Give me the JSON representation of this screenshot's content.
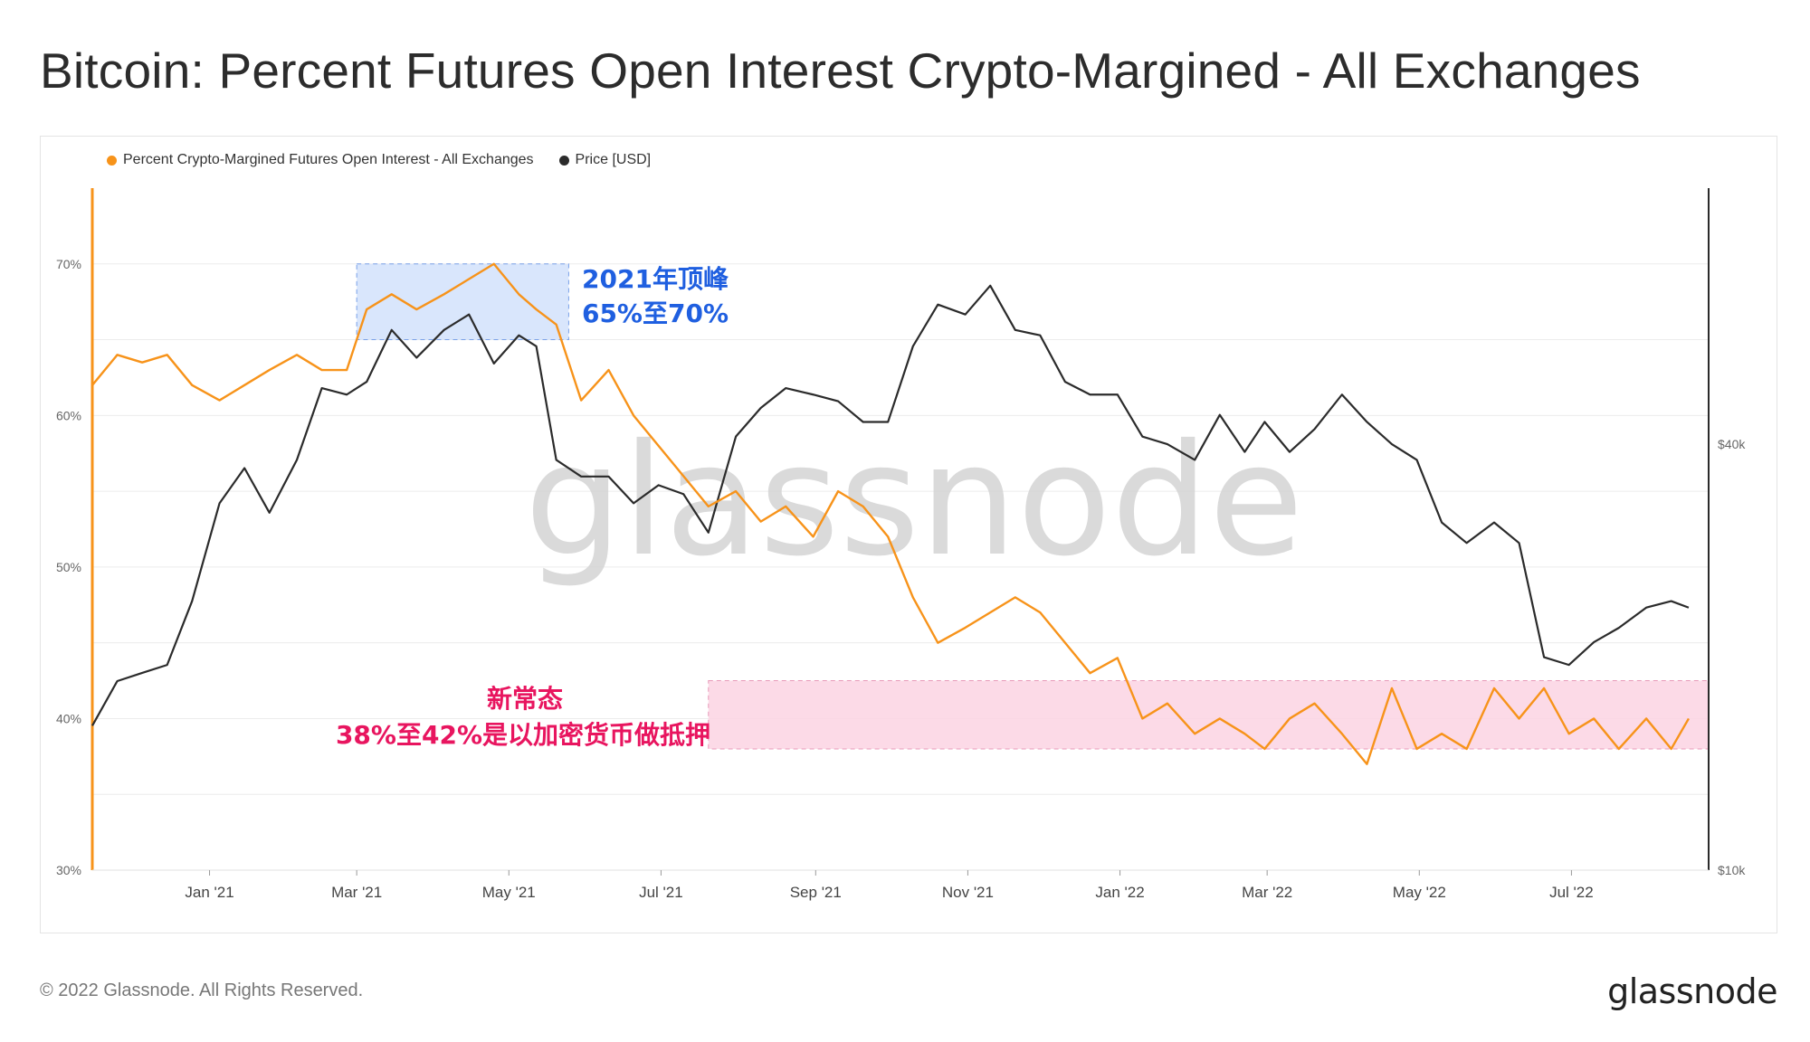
{
  "title": "Bitcoin: Percent Futures Open Interest Crypto-Margined - All Exchanges",
  "footer": "© 2022 Glassnode. All Rights Reserved.",
  "logo": "glassnode",
  "watermark": "glassnode",
  "colors": {
    "orange": "#f7931a",
    "black": "#2b2b2b",
    "blue_box": "#cfe0fb",
    "pink_box": "#fbd3e3",
    "blue_text": "#1f5fe0",
    "pink_text": "#e8155f"
  },
  "chart_data": {
    "type": "line",
    "title": "Bitcoin: Percent Futures Open Interest Crypto-Margined - All Exchanges",
    "x_ticks": [
      "Jan '21",
      "Mar '21",
      "May '21",
      "Jul '21",
      "Sep '21",
      "Nov '21",
      "Jan '22",
      "Mar '22",
      "May '22",
      "Jul '22"
    ],
    "left_axis": {
      "ticks": [
        "30%",
        "40%",
        "50%",
        "60%",
        "70%"
      ],
      "ylim": [
        30,
        75
      ]
    },
    "right_axis": {
      "ticks": [
        "$10k",
        "$40k"
      ],
      "scale": "log"
    },
    "legend": [
      {
        "name": "Percent Crypto-Margined Futures Open Interest - All Exchanges",
        "color": "#f7931a"
      },
      {
        "name": "Price [USD]",
        "color": "#2b2b2b"
      }
    ],
    "series": [
      {
        "name": "Percent Crypto-Margined Futures Open Interest - All Exchanges",
        "axis": "left",
        "x": [
          "2020-11-15",
          "2020-11-25",
          "2020-12-05",
          "2020-12-15",
          "2020-12-25",
          "2021-01-05",
          "2021-01-15",
          "2021-01-25",
          "2021-02-05",
          "2021-02-15",
          "2021-02-25",
          "2021-03-05",
          "2021-03-15",
          "2021-03-25",
          "2021-04-05",
          "2021-04-15",
          "2021-04-25",
          "2021-05-05",
          "2021-05-12",
          "2021-05-20",
          "2021-05-30",
          "2021-06-10",
          "2021-06-20",
          "2021-06-30",
          "2021-07-10",
          "2021-07-20",
          "2021-07-31",
          "2021-08-10",
          "2021-08-20",
          "2021-08-31",
          "2021-09-10",
          "2021-09-20",
          "2021-09-30",
          "2021-10-10",
          "2021-10-20",
          "2021-10-31",
          "2021-11-10",
          "2021-11-20",
          "2021-11-30",
          "2021-12-10",
          "2021-12-20",
          "2021-12-31",
          "2022-01-10",
          "2022-01-20",
          "2022-01-31",
          "2022-02-10",
          "2022-02-20",
          "2022-02-28",
          "2022-03-10",
          "2022-03-20",
          "2022-03-31",
          "2022-04-10",
          "2022-04-20",
          "2022-04-30",
          "2022-05-10",
          "2022-05-20",
          "2022-05-31",
          "2022-06-10",
          "2022-06-20",
          "2022-06-30",
          "2022-07-10",
          "2022-07-20",
          "2022-07-31",
          "2022-08-10",
          "2022-08-17"
        ],
        "values": [
          62,
          64,
          63.5,
          64,
          62,
          61,
          62,
          63,
          64,
          63,
          63,
          67,
          68,
          67,
          68,
          69,
          70,
          68,
          67,
          66,
          61,
          63,
          60,
          58,
          56,
          54,
          55,
          53,
          54,
          52,
          55,
          54,
          52,
          48,
          45,
          46,
          47,
          48,
          47,
          45,
          43,
          44,
          40,
          41,
          39,
          40,
          39,
          38,
          40,
          41,
          39,
          37,
          42,
          38,
          39,
          38,
          42,
          40,
          42,
          39,
          40,
          38,
          40,
          38,
          40
        ]
      },
      {
        "name": "Price [USD]",
        "axis": "right",
        "x": [
          "2020-11-15",
          "2020-11-25",
          "2020-12-05",
          "2020-12-15",
          "2020-12-25",
          "2021-01-05",
          "2021-01-15",
          "2021-01-25",
          "2021-02-05",
          "2021-02-15",
          "2021-02-25",
          "2021-03-05",
          "2021-03-15",
          "2021-03-25",
          "2021-04-05",
          "2021-04-15",
          "2021-04-25",
          "2021-05-05",
          "2021-05-12",
          "2021-05-20",
          "2021-05-30",
          "2021-06-10",
          "2021-06-20",
          "2021-06-30",
          "2021-07-10",
          "2021-07-20",
          "2021-07-31",
          "2021-08-10",
          "2021-08-20",
          "2021-08-31",
          "2021-09-10",
          "2021-09-20",
          "2021-09-30",
          "2021-10-10",
          "2021-10-20",
          "2021-10-31",
          "2021-11-10",
          "2021-11-20",
          "2021-11-30",
          "2021-12-10",
          "2021-12-20",
          "2021-12-31",
          "2022-01-10",
          "2022-01-20",
          "2022-01-31",
          "2022-02-10",
          "2022-02-20",
          "2022-02-28",
          "2022-03-10",
          "2022-03-20",
          "2022-03-31",
          "2022-04-10",
          "2022-04-20",
          "2022-04-30",
          "2022-05-10",
          "2022-05-20",
          "2022-05-31",
          "2022-06-10",
          "2022-06-20",
          "2022-06-30",
          "2022-07-10",
          "2022-07-20",
          "2022-07-31",
          "2022-08-10",
          "2022-08-17"
        ],
        "values": [
          16000,
          18500,
          19000,
          19500,
          24000,
          33000,
          37000,
          32000,
          38000,
          48000,
          47000,
          49000,
          58000,
          53000,
          58000,
          61000,
          52000,
          57000,
          55000,
          38000,
          36000,
          36000,
          33000,
          35000,
          34000,
          30000,
          41000,
          45000,
          48000,
          47000,
          46000,
          43000,
          43000,
          55000,
          63000,
          61000,
          67000,
          58000,
          57000,
          49000,
          47000,
          47000,
          41000,
          40000,
          38000,
          44000,
          39000,
          43000,
          39000,
          42000,
          47000,
          43000,
          40000,
          38000,
          31000,
          29000,
          31000,
          29000,
          20000,
          19500,
          21000,
          22000,
          23500,
          24000,
          23500
        ]
      }
    ],
    "annotations": [
      {
        "label": "2021年顶峰",
        "label2": "65%至70%",
        "range_x": [
          "2021-03-01",
          "2021-05-25"
        ],
        "range_y": [
          65,
          70
        ]
      },
      {
        "label": "新常态",
        "label2": "38%至42%是以加密货币做抵押",
        "range_x": [
          "2021-07-20",
          "2022-08-20"
        ],
        "range_y": [
          38,
          42.5
        ]
      }
    ]
  }
}
